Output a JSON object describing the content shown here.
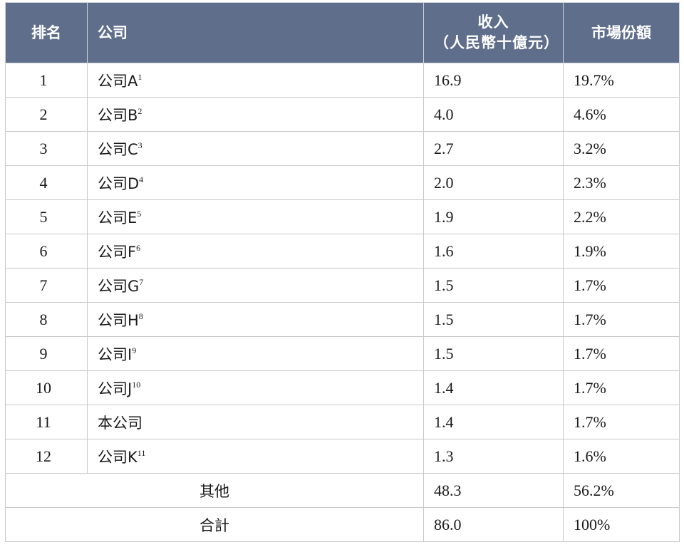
{
  "headers": {
    "rank": "排名",
    "company": "公司",
    "revenue_line1": "收入",
    "revenue_line2": "（人民幣十億元）",
    "share": "市場份額"
  },
  "rows": [
    {
      "rank": "1",
      "name": "公司A",
      "note": "1",
      "revenue": "16.9",
      "share": "19.7%"
    },
    {
      "rank": "2",
      "name": "公司B",
      "note": "2",
      "revenue": "4.0",
      "share": "4.6%"
    },
    {
      "rank": "3",
      "name": "公司C",
      "note": "3",
      "revenue": "2.7",
      "share": "3.2%"
    },
    {
      "rank": "4",
      "name": "公司D",
      "note": "4",
      "revenue": "2.0",
      "share": "2.3%"
    },
    {
      "rank": "5",
      "name": "公司E",
      "note": "5",
      "revenue": "1.9",
      "share": "2.2%"
    },
    {
      "rank": "6",
      "name": "公司F",
      "note": "6",
      "revenue": "1.6",
      "share": "1.9%"
    },
    {
      "rank": "7",
      "name": "公司G",
      "note": "7",
      "revenue": "1.5",
      "share": "1.7%"
    },
    {
      "rank": "8",
      "name": "公司H",
      "note": "8",
      "revenue": "1.5",
      "share": "1.7%"
    },
    {
      "rank": "9",
      "name": "公司I",
      "note": "9",
      "revenue": "1.5",
      "share": "1.7%"
    },
    {
      "rank": "10",
      "name": "公司J",
      "note": "10",
      "revenue": "1.4",
      "share": "1.7%"
    },
    {
      "rank": "11",
      "name": "本公司",
      "note": "",
      "revenue": "1.4",
      "share": "1.7%"
    },
    {
      "rank": "12",
      "name": "公司K",
      "note": "11",
      "revenue": "1.3",
      "share": "1.6%"
    }
  ],
  "others": {
    "label": "其他",
    "revenue": "48.3",
    "share": "56.2%"
  },
  "total": {
    "label": "合計",
    "revenue": "86.0",
    "share": "100%"
  },
  "colors": {
    "header_bg": "#5f6e8b",
    "header_text": "#ffffff",
    "border": "#c8c8c8"
  }
}
